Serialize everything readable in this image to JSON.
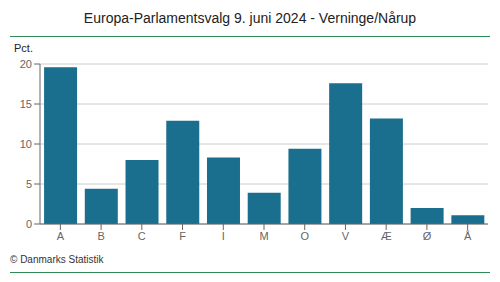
{
  "chart_data": {
    "type": "bar",
    "title": "Europa-Parlamentsvalg 9. juni 2024 - Verninge/Nårup",
    "categories": [
      "A",
      "B",
      "C",
      "F",
      "I",
      "M",
      "O",
      "V",
      "Æ",
      "Ø",
      "Å"
    ],
    "values": [
      19.6,
      4.4,
      8.0,
      12.9,
      8.3,
      3.9,
      9.4,
      17.6,
      13.2,
      2.0,
      1.1
    ],
    "color": "#1a6e8e",
    "ylabel": "Pct.",
    "ylim": [
      0,
      20
    ],
    "yticks": [
      0,
      5,
      10,
      15,
      20
    ],
    "grid": true,
    "annotations": [
      "© Danmarks Statistik"
    ]
  }
}
